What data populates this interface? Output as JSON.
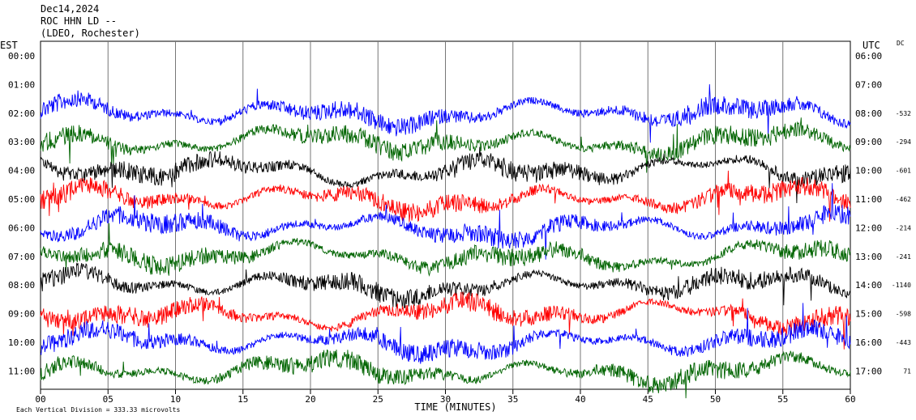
{
  "header": {
    "date": "Dec14,2024",
    "station": "ROC HHN LD --",
    "network": "(LDEO, Rochester)"
  },
  "left_axis_title": "EST",
  "right_axis_title": "UTC",
  "dc_title": "DC",
  "footer_note": "Each Vertical Division =  333.33 microvolts",
  "chart_data": {
    "type": "line",
    "title": "",
    "xlabel": "TIME (MINUTES)",
    "xlim": [
      0,
      60
    ],
    "x_ticks": [
      "00",
      "05",
      "10",
      "15",
      "20",
      "25",
      "30",
      "35",
      "40",
      "45",
      "50",
      "55",
      "60"
    ],
    "grid_x": true,
    "rows": [
      {
        "est": "00:00",
        "utc": "06:00",
        "dc": ""
      },
      {
        "est": "01:00",
        "utc": "07:00",
        "dc": ""
      },
      {
        "est": "02:00",
        "utc": "08:00",
        "dc": "-532"
      },
      {
        "est": "03:00",
        "utc": "09:00",
        "dc": "-294"
      },
      {
        "est": "04:00",
        "utc": "10:00",
        "dc": "-601"
      },
      {
        "est": "05:00",
        "utc": "11:00",
        "dc": "-462"
      },
      {
        "est": "06:00",
        "utc": "12:00",
        "dc": "-214"
      },
      {
        "est": "07:00",
        "utc": "13:00",
        "dc": "-241"
      },
      {
        "est": "08:00",
        "utc": "14:00",
        "dc": "-1140"
      },
      {
        "est": "09:00",
        "utc": "15:00",
        "dc": "-598"
      },
      {
        "est": "10:00",
        "utc": "16:00",
        "dc": "-443"
      },
      {
        "est": "11:00",
        "utc": "17:00",
        "dc": "71"
      }
    ],
    "trace_colors": [
      "#0000ff",
      "#006400",
      "#000000",
      "#ff0000"
    ],
    "traces": [
      {
        "row": 2,
        "color": "#0000ff"
      },
      {
        "row": 3,
        "color": "#006400"
      },
      {
        "row": 4,
        "color": "#000000"
      },
      {
        "row": 5,
        "color": "#ff0000"
      },
      {
        "row": 6,
        "color": "#0000ff"
      },
      {
        "row": 7,
        "color": "#006400"
      },
      {
        "row": 8,
        "color": "#000000"
      },
      {
        "row": 9,
        "color": "#ff0000"
      },
      {
        "row": 10,
        "color": "#0000ff"
      },
      {
        "row": 11,
        "color": "#006400"
      }
    ]
  }
}
